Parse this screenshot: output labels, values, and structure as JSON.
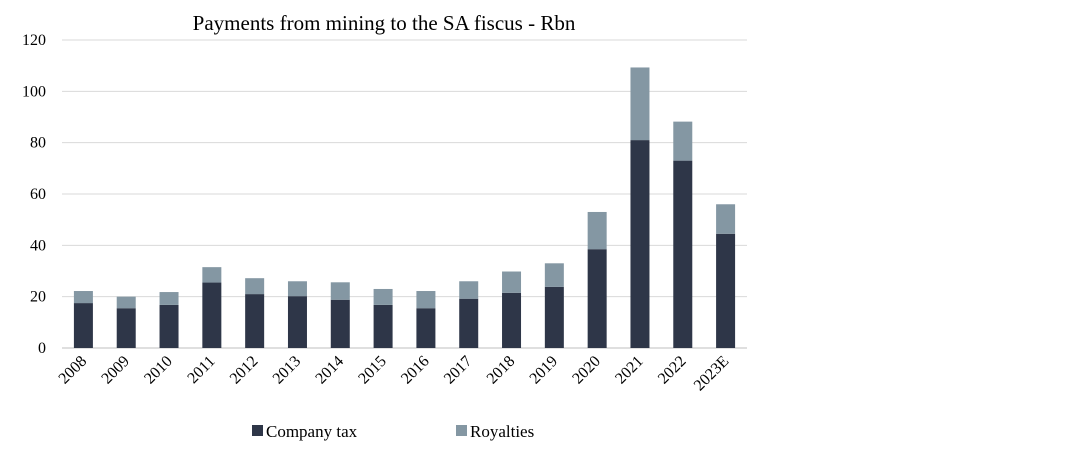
{
  "chart_data": {
    "type": "bar",
    "stacked": true,
    "title": "Payments from mining to the SA fiscus - Rbn",
    "xlabel": "",
    "ylabel": "",
    "ylim": [
      0,
      120
    ],
    "yticks": [
      0,
      20,
      40,
      60,
      80,
      100,
      120
    ],
    "grid": true,
    "legend_position": "bottom",
    "categories": [
      "2008",
      "2009",
      "2010",
      "2011",
      "2012",
      "2013",
      "2014",
      "2015",
      "2016",
      "2017",
      "2018",
      "2019",
      "2020",
      "2021",
      "2022",
      "2023E"
    ],
    "series": [
      {
        "name": "Company tax",
        "color": "#2e3648",
        "values": [
          17.5,
          15.5,
          16.8,
          25.5,
          21.0,
          20.2,
          18.8,
          16.8,
          15.5,
          19.2,
          21.5,
          23.8,
          38.5,
          81.0,
          73.0,
          44.5
        ]
      },
      {
        "name": "Royalties",
        "color": "#8497a3",
        "values": [
          4.7,
          4.5,
          5.0,
          6.0,
          6.2,
          5.8,
          6.8,
          6.2,
          6.7,
          6.8,
          8.3,
          9.2,
          14.5,
          28.3,
          15.2,
          11.5
        ]
      }
    ]
  }
}
